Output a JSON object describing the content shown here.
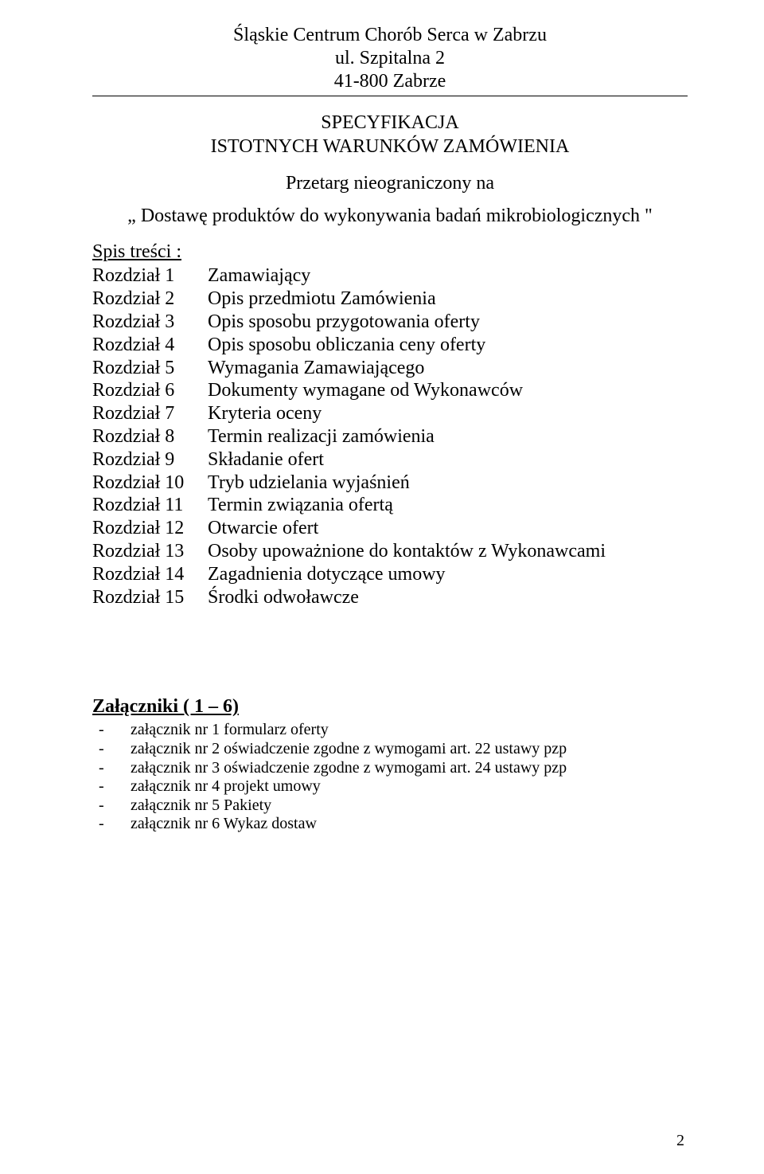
{
  "header": {
    "line1": "Śląskie Centrum Chorób Serca w Zabrzu",
    "line2": "ul. Szpitalna 2",
    "line3": "41-800 Zabrze"
  },
  "title": {
    "line1": "SPECYFIKACJA",
    "line2": "ISTOTNYCH WARUNKÓW ZAMÓWIENIA"
  },
  "subtitle": "Przetarg nieograniczony  na",
  "quote": "„ Dostawę produktów do wykonywania badań mikrobiologicznych \"",
  "toc_heading_prefix": " ",
  "toc_heading": "Spis treści :",
  "toc": [
    {
      "a": "Rozdział 1",
      "b": "Zamawiający"
    },
    {
      "a": "Rozdział 2",
      "b": "Opis przedmiotu Zamówienia"
    },
    {
      "a": "Rozdział 3",
      "b": "Opis sposobu przygotowania oferty"
    },
    {
      "a": "Rozdział 4",
      "b": "Opis sposobu obliczania ceny oferty"
    },
    {
      "a": "Rozdział 5",
      "b": "Wymagania Zamawiającego"
    },
    {
      "a": "Rozdział 6",
      "b": "Dokumenty wymagane od Wykonawców"
    },
    {
      "a": "Rozdział 7",
      "b": "Kryteria oceny"
    },
    {
      "a": "Rozdział 8",
      "b": "Termin realizacji zamówienia"
    },
    {
      "a": "Rozdział 9",
      "b": "Składanie ofert"
    },
    {
      "a": "Rozdział 10",
      "b": "Tryb udzielania wyjaśnień"
    },
    {
      "a": "Rozdział 11",
      "b": "Termin związania ofertą"
    },
    {
      "a": "Rozdział 12",
      "b": "Otwarcie ofert"
    },
    {
      "a": "Rozdział 13",
      "b": "Osoby upoważnione do kontaktów z Wykonawcami"
    },
    {
      "a": "Rozdział 14",
      "b": "Zagadnienia dotyczące umowy"
    },
    {
      "a": "Rozdział 15",
      "b": "Środki odwoławcze"
    }
  ],
  "annex_heading": "Załączniki ( 1 – 6)",
  "annex": [
    "załącznik nr 1  formularz oferty",
    "załącznik nr 2  oświadczenie zgodne z wymogami art. 22 ustawy pzp",
    "załącznik nr 3  oświadczenie zgodne z wymogami art.  24 ustawy pzp",
    "załącznik nr 4  projekt umowy",
    "załącznik nr 5  Pakiety",
    "załącznik nr 6  Wykaz dostaw"
  ],
  "page_number": "2",
  "dash": "-"
}
